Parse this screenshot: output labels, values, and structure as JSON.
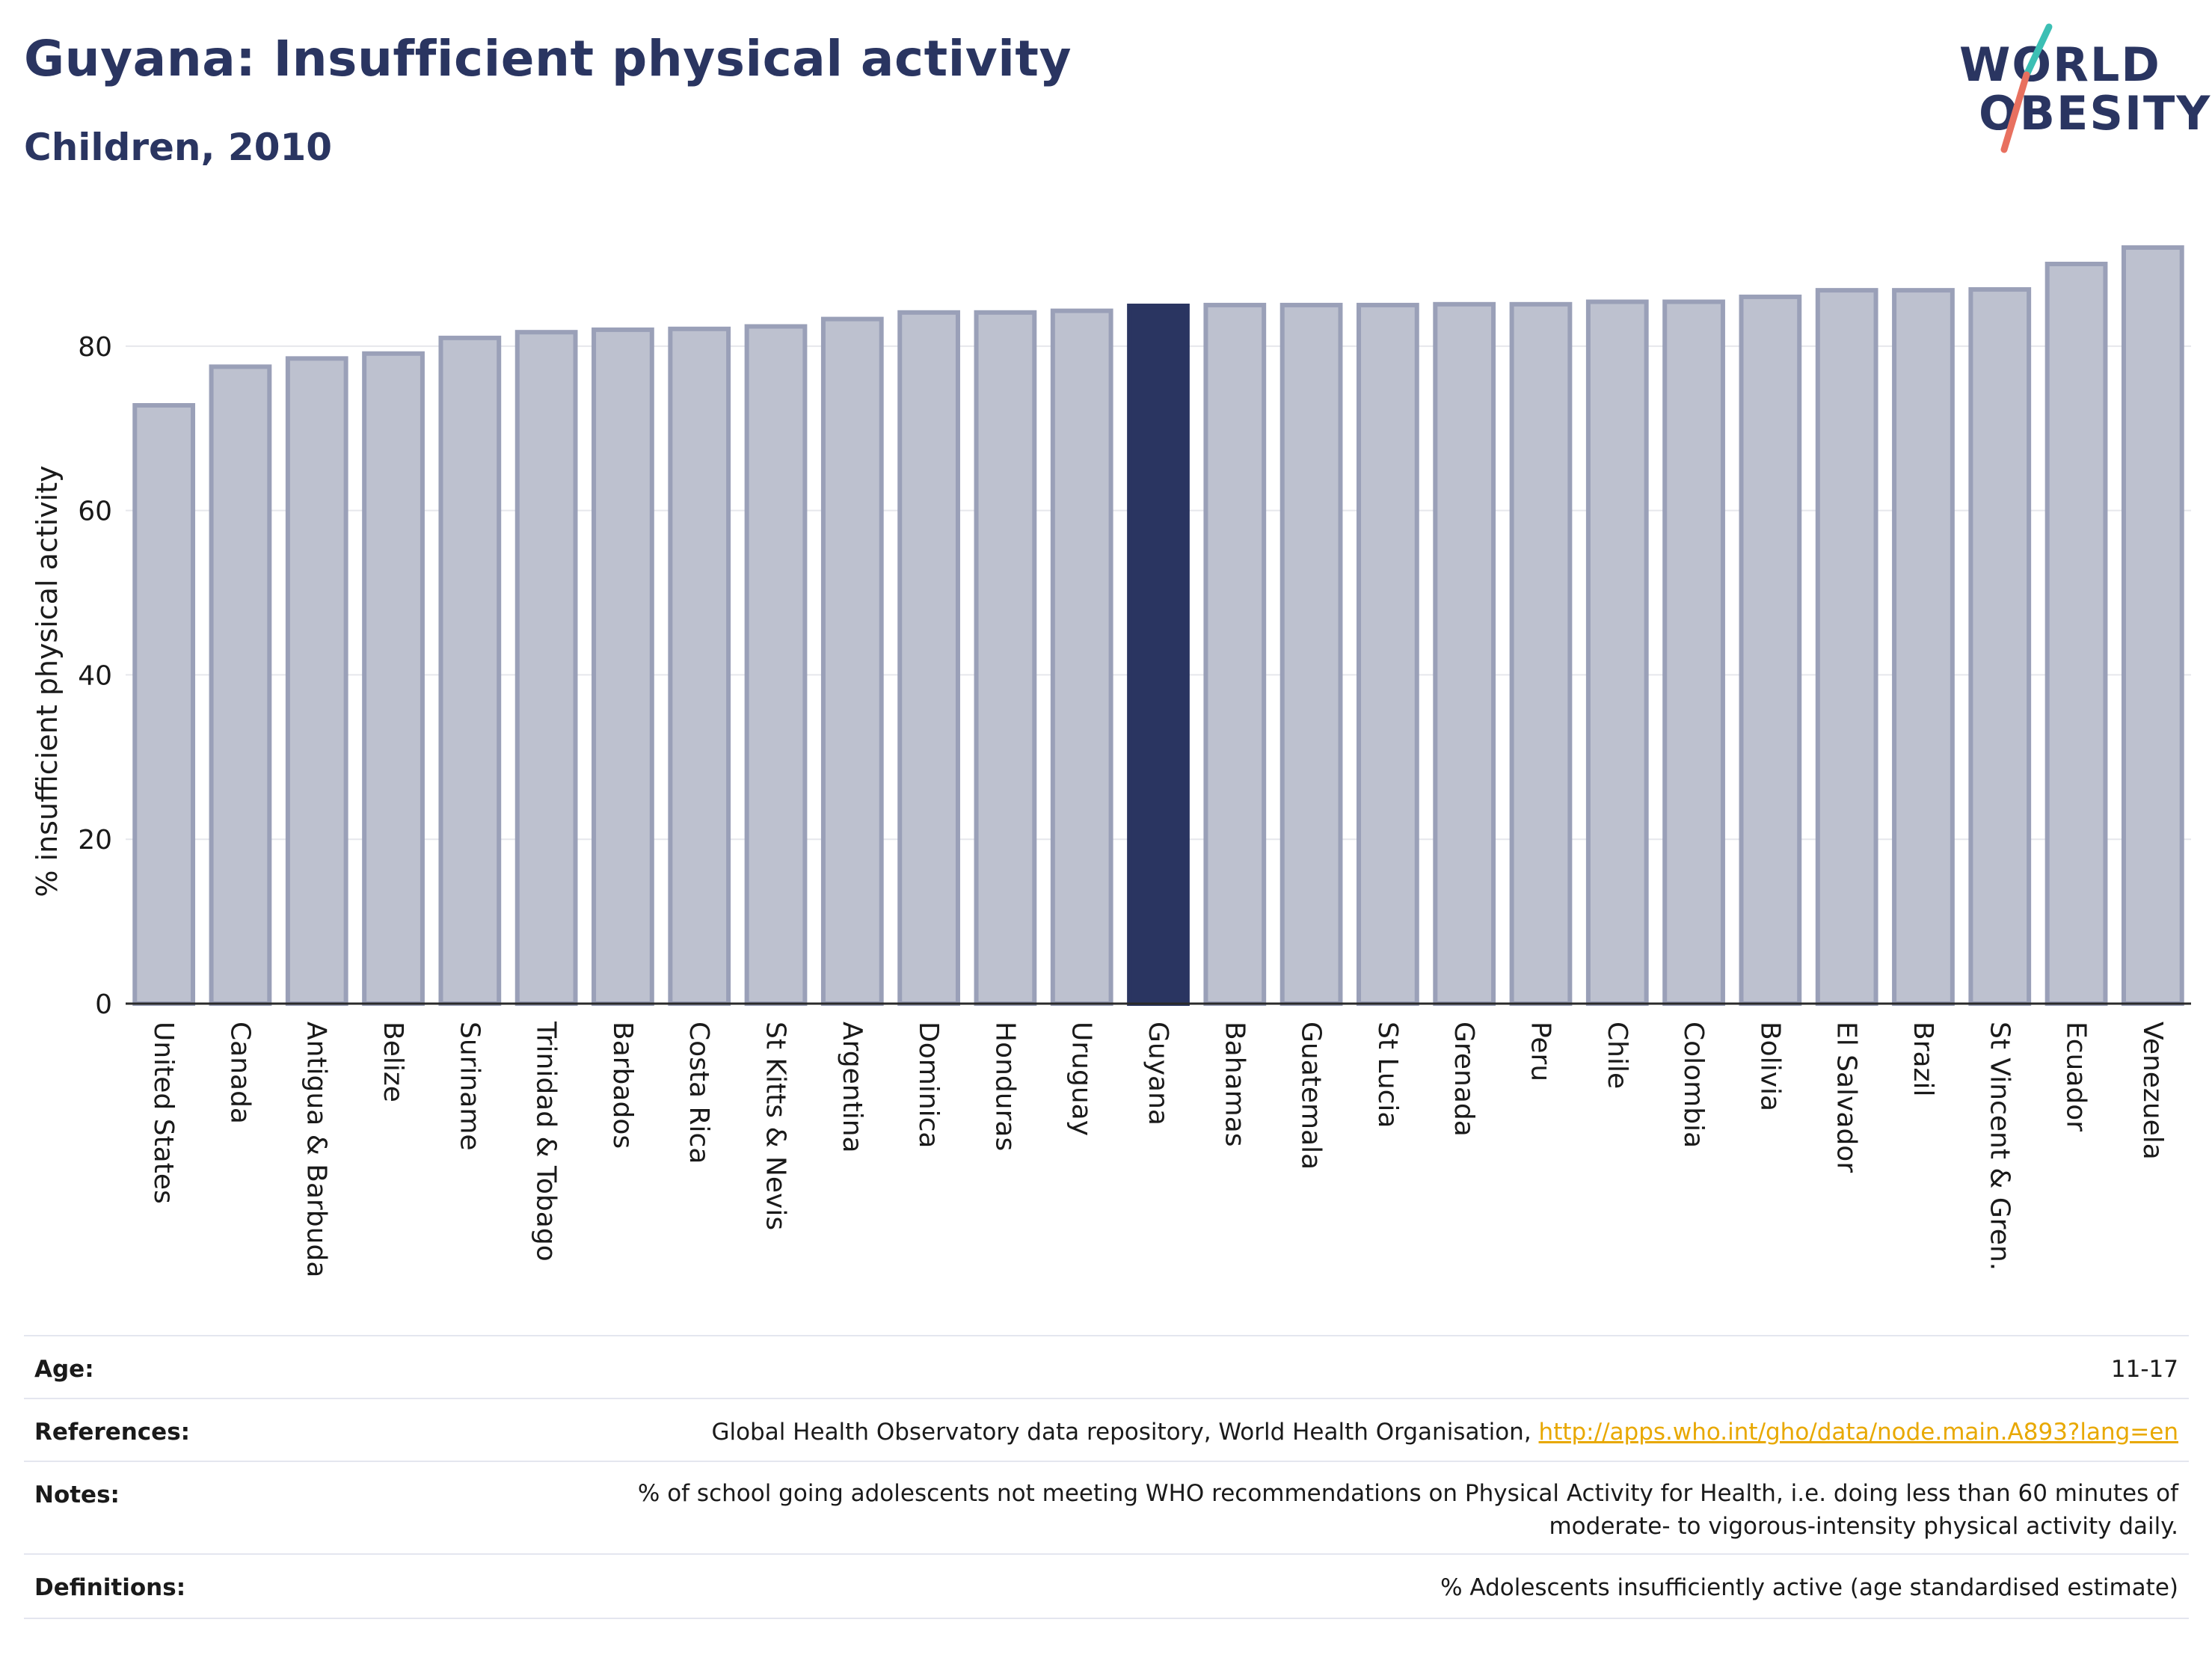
{
  "header": {
    "title": "Guyana: Insufficient physical activity",
    "subtitle": "Children, 2010"
  },
  "logo": {
    "line1": "WORLD",
    "line2": "OBESITY"
  },
  "colors": {
    "highlight": "#2a3561",
    "bar_fill": "#bdc1cf",
    "bar_stroke": "#9aa0b8",
    "logo_teal": "#3cbfb4",
    "logo_coral": "#e8705f",
    "link": "#e8a800"
  },
  "chart_data": {
    "type": "bar",
    "title": "Guyana: Insufficient physical activity",
    "subtitle": "Children, 2010",
    "ylabel": "% insufficient physical activity",
    "xlabel": "",
    "ylim": [
      0,
      93
    ],
    "yticks": [
      0,
      20,
      40,
      60,
      80
    ],
    "grid": true,
    "highlight": "Guyana",
    "categories": [
      "United States",
      "Canada",
      "Antigua & Barbuda",
      "Belize",
      "Suriname",
      "Trinidad & Tobago",
      "Barbados",
      "Costa Rica",
      "St Kitts & Nevis",
      "Argentina",
      "Dominica",
      "Honduras",
      "Uruguay",
      "Guyana",
      "Bahamas",
      "Guatemala",
      "St Lucia",
      "Grenada",
      "Peru",
      "Chile",
      "Colombia",
      "Bolivia",
      "El Salvador",
      "Brazil",
      "St Vincent & Gren.",
      "Ecuador",
      "Venezuela"
    ],
    "values": [
      72.8,
      77.5,
      78.5,
      79.1,
      81.0,
      81.7,
      82.0,
      82.1,
      82.4,
      83.3,
      84.1,
      84.1,
      84.3,
      84.9,
      85.0,
      85.0,
      85.0,
      85.1,
      85.1,
      85.4,
      85.4,
      86.0,
      86.8,
      86.8,
      86.9,
      90.0,
      92.0
    ]
  },
  "meta": {
    "age_label": "Age:",
    "age_value": "11-17",
    "references_label": "References:",
    "references_text": "Global Health Observatory data repository, World Health Organisation, ",
    "references_link": "http://apps.who.int/gho/data/node.main.A893?lang=en",
    "notes_label": "Notes:",
    "notes_line1": "% of school going adolescents not meeting WHO recommendations on Physical Activity for Health, i.e. doing less than 60 minutes of",
    "notes_line2": "moderate- to vigorous-intensity physical activity daily.",
    "definitions_label": "Definitions:",
    "definitions_value": "% Adolescents insufficiently active (age standardised estimate)"
  }
}
